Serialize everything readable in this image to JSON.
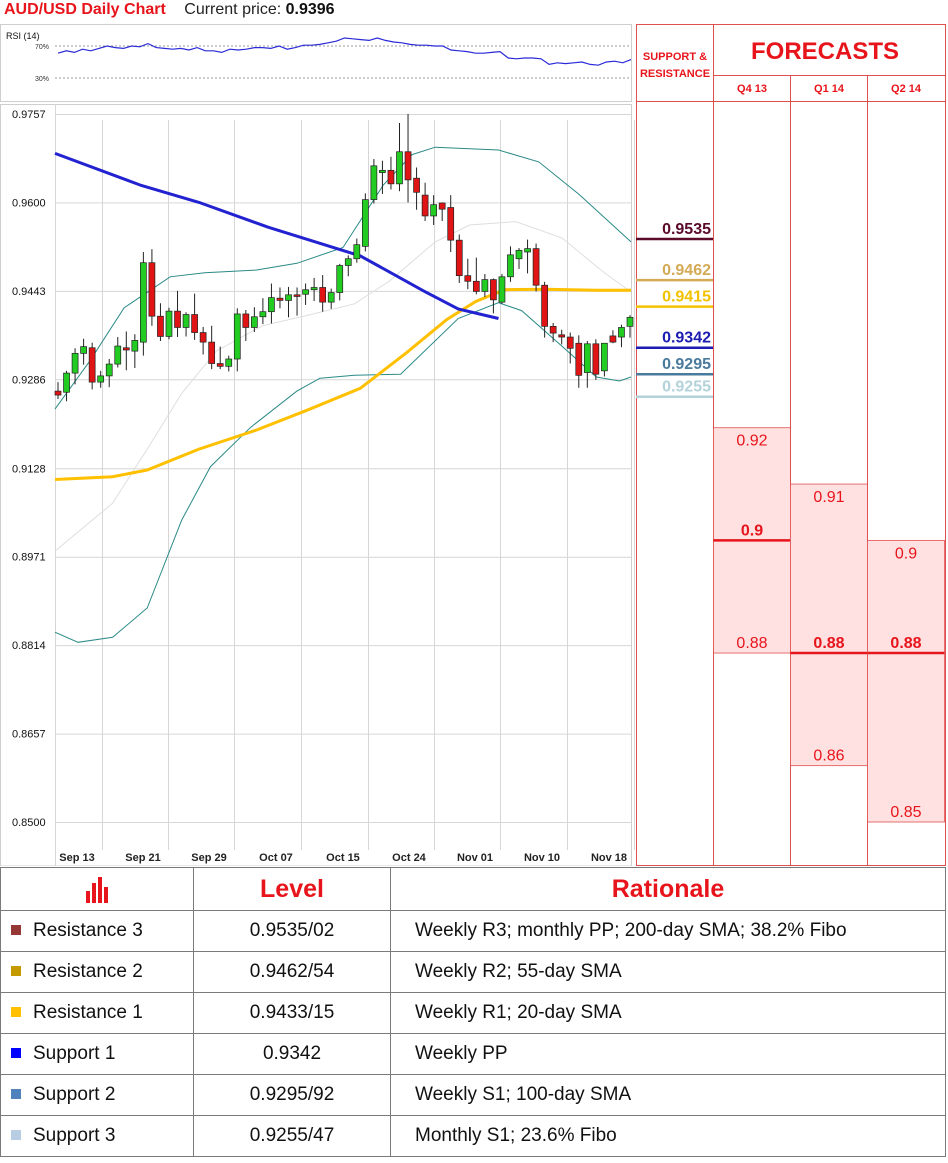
{
  "header": {
    "title": "AUD/USD Daily Chart",
    "price_label": "Current price:",
    "price": "0.9396"
  },
  "chart_data": {
    "type": "candlestick",
    "title": "AUD/USD Daily Chart",
    "y_ticks": [
      "0.9757",
      "0.9600",
      "0.9443",
      "0.9286",
      "0.9128",
      "0.8971",
      "0.8814",
      "0.8657",
      "0.8500"
    ],
    "ylim": [
      0.85,
      0.9757
    ],
    "x_labels": [
      "Sep 13",
      "Sep 21",
      "Sep 29",
      "Oct 07",
      "Oct 15",
      "Oct 24",
      "Nov 01",
      "Nov 10",
      "Nov 18"
    ],
    "rsi": {
      "label": "RSI (14)",
      "levels": [
        "70%",
        "30%"
      ],
      "values": [
        61,
        64,
        62,
        66,
        64,
        67,
        70,
        68,
        67,
        70,
        69,
        73,
        68,
        67,
        66,
        67,
        65,
        68,
        64,
        64,
        62,
        66,
        65,
        66,
        68,
        68,
        67,
        70,
        66,
        68,
        71,
        71,
        72,
        74,
        76,
        80,
        79,
        78,
        77,
        80,
        77,
        75,
        74,
        72,
        71,
        71,
        70,
        70,
        65,
        64,
        63,
        61,
        61,
        62,
        63,
        55,
        54,
        55,
        55,
        54,
        47,
        49,
        48,
        49,
        50,
        47,
        46,
        50,
        51,
        49,
        53
      ]
    },
    "candles": [
      [
        0.9265,
        0.9281,
        0.9251,
        0.9258
      ],
      [
        0.9263,
        0.9301,
        0.9247,
        0.9297
      ],
      [
        0.9297,
        0.9341,
        0.9277,
        0.9332
      ],
      [
        0.9332,
        0.9358,
        0.9312,
        0.9344
      ],
      [
        0.9342,
        0.9351,
        0.9268,
        0.9281
      ],
      [
        0.9281,
        0.9301,
        0.9271,
        0.9292
      ],
      [
        0.9292,
        0.9322,
        0.9272,
        0.9313
      ],
      [
        0.9313,
        0.9361,
        0.9307,
        0.9345
      ],
      [
        0.9342,
        0.9371,
        0.9302,
        0.9338
      ],
      [
        0.9336,
        0.9366,
        0.9306,
        0.9355
      ],
      [
        0.9352,
        0.9512,
        0.9328,
        0.9493
      ],
      [
        0.9493,
        0.9517,
        0.9381,
        0.9398
      ],
      [
        0.9398,
        0.9421,
        0.9354,
        0.9362
      ],
      [
        0.9362,
        0.9413,
        0.9357,
        0.9407
      ],
      [
        0.9407,
        0.9443,
        0.9361,
        0.9378
      ],
      [
        0.9378,
        0.9405,
        0.9362,
        0.9401
      ],
      [
        0.9401,
        0.9438,
        0.9356,
        0.9369
      ],
      [
        0.9369,
        0.9379,
        0.933,
        0.9352
      ],
      [
        0.9352,
        0.9381,
        0.9304,
        0.9314
      ],
      [
        0.9314,
        0.9344,
        0.9304,
        0.9309
      ],
      [
        0.9309,
        0.9328,
        0.93,
        0.9322
      ],
      [
        0.9322,
        0.9412,
        0.93,
        0.9402
      ],
      [
        0.9402,
        0.9409,
        0.9354,
        0.9378
      ],
      [
        0.9378,
        0.9414,
        0.937,
        0.9397
      ],
      [
        0.9397,
        0.943,
        0.9384,
        0.9406
      ],
      [
        0.9406,
        0.9456,
        0.9385,
        0.9431
      ],
      [
        0.943,
        0.9449,
        0.9412,
        0.9426
      ],
      [
        0.9426,
        0.945,
        0.9396,
        0.9436
      ],
      [
        0.9436,
        0.9449,
        0.9399,
        0.9433
      ],
      [
        0.9437,
        0.9456,
        0.9418,
        0.9445
      ],
      [
        0.9445,
        0.9466,
        0.9425,
        0.9449
      ],
      [
        0.9449,
        0.9471,
        0.9406,
        0.9423
      ],
      [
        0.9423,
        0.9447,
        0.9411,
        0.944
      ],
      [
        0.944,
        0.9491,
        0.9426,
        0.9488
      ],
      [
        0.9488,
        0.9506,
        0.9469,
        0.95
      ],
      [
        0.95,
        0.9536,
        0.9493,
        0.9525
      ],
      [
        0.9522,
        0.9616,
        0.9513,
        0.9605
      ],
      [
        0.9605,
        0.9677,
        0.9598,
        0.9665
      ],
      [
        0.9653,
        0.9674,
        0.9615,
        0.9657
      ],
      [
        0.9657,
        0.9681,
        0.9623,
        0.9633
      ],
      [
        0.9633,
        0.9741,
        0.962,
        0.969
      ],
      [
        0.969,
        0.9757,
        0.96,
        0.964
      ],
      [
        0.9643,
        0.9662,
        0.9587,
        0.9618
      ],
      [
        0.9613,
        0.9635,
        0.9567,
        0.9576
      ],
      [
        0.9576,
        0.9613,
        0.956,
        0.9596
      ],
      [
        0.9599,
        0.96,
        0.9567,
        0.9588
      ],
      [
        0.9591,
        0.9613,
        0.9512,
        0.9533
      ],
      [
        0.9533,
        0.9543,
        0.9457,
        0.947
      ],
      [
        0.947,
        0.95,
        0.9446,
        0.946
      ],
      [
        0.946,
        0.9502,
        0.9437,
        0.9442
      ],
      [
        0.9442,
        0.9473,
        0.9432,
        0.9463
      ],
      [
        0.9463,
        0.9465,
        0.9403,
        0.9427
      ],
      [
        0.9423,
        0.9473,
        0.942,
        0.9468
      ],
      [
        0.9468,
        0.9522,
        0.9459,
        0.9507
      ],
      [
        0.95,
        0.9519,
        0.9482,
        0.9515
      ],
      [
        0.9512,
        0.9534,
        0.9474,
        0.9518
      ],
      [
        0.9518,
        0.9527,
        0.9442,
        0.9453
      ],
      [
        0.9453,
        0.9459,
        0.936,
        0.938
      ],
      [
        0.938,
        0.9386,
        0.9352,
        0.9368
      ],
      [
        0.9365,
        0.9374,
        0.9348,
        0.9361
      ],
      [
        0.9361,
        0.9369,
        0.9314,
        0.9341
      ],
      [
        0.935,
        0.9364,
        0.9271,
        0.9293
      ],
      [
        0.9298,
        0.9354,
        0.9271,
        0.9349
      ],
      [
        0.9349,
        0.9357,
        0.9285,
        0.9295
      ],
      [
        0.9301,
        0.935,
        0.9291,
        0.935
      ],
      [
        0.9363,
        0.9373,
        0.935,
        0.9352
      ],
      [
        0.9361,
        0.9383,
        0.9343,
        0.9378
      ],
      [
        0.938,
        0.94,
        0.936,
        0.9396
      ]
    ],
    "sma_blue": [
      [
        0,
        0.9687
      ],
      [
        15,
        0.963
      ],
      [
        25,
        0.96
      ],
      [
        37,
        0.9556
      ],
      [
        53,
        0.9505
      ],
      [
        64,
        0.9443
      ],
      [
        70,
        0.9411
      ],
      [
        77,
        0.9394
      ]
    ],
    "sma_yellow": [
      [
        0,
        0.9108
      ],
      [
        10,
        0.9113
      ],
      [
        16,
        0.9125
      ],
      [
        25,
        0.9162
      ],
      [
        35,
        0.9196
      ],
      [
        44,
        0.9232
      ],
      [
        53,
        0.927
      ],
      [
        61,
        0.9333
      ],
      [
        68,
        0.9392
      ],
      [
        73,
        0.9424
      ],
      [
        78,
        0.9445
      ],
      [
        85,
        0.9446
      ],
      [
        94,
        0.9444
      ],
      [
        100,
        0.9444
      ]
    ],
    "bb_upper": [
      [
        0,
        0.9233
      ],
      [
        6,
        0.9318
      ],
      [
        12,
        0.9413
      ],
      [
        20,
        0.9468
      ],
      [
        26,
        0.9475
      ],
      [
        35,
        0.948
      ],
      [
        42,
        0.9492
      ],
      [
        50,
        0.952
      ],
      [
        57,
        0.9631
      ],
      [
        62,
        0.9685
      ],
      [
        66,
        0.9698
      ],
      [
        77,
        0.9693
      ],
      [
        84,
        0.9672
      ],
      [
        91,
        0.9614
      ],
      [
        100,
        0.953
      ]
    ],
    "bb_lower": [
      [
        0,
        0.8837
      ],
      [
        4,
        0.8819
      ],
      [
        10,
        0.8828
      ],
      [
        16,
        0.888
      ],
      [
        22,
        0.9036
      ],
      [
        27,
        0.9131
      ],
      [
        34,
        0.9201
      ],
      [
        42,
        0.9265
      ],
      [
        46,
        0.9288
      ],
      [
        52,
        0.9293
      ],
      [
        60,
        0.9295
      ],
      [
        70,
        0.9394
      ],
      [
        77,
        0.9422
      ],
      [
        81,
        0.9408
      ],
      [
        88,
        0.9345
      ],
      [
        94,
        0.929
      ],
      [
        98,
        0.9283
      ],
      [
        100,
        0.929
      ]
    ],
    "bb_mid": [
      [
        0,
        0.8981
      ],
      [
        10,
        0.9066
      ],
      [
        16,
        0.9162
      ],
      [
        22,
        0.9261
      ],
      [
        28,
        0.9336
      ],
      [
        36,
        0.9381
      ],
      [
        44,
        0.94
      ],
      [
        52,
        0.942
      ],
      [
        58,
        0.946
      ],
      [
        66,
        0.953
      ],
      [
        72,
        0.956
      ],
      [
        80,
        0.9566
      ],
      [
        88,
        0.9537
      ],
      [
        95,
        0.9478
      ],
      [
        100,
        0.9441
      ]
    ],
    "levels_panel": {
      "heading_line1": "SUPPORT &",
      "heading_line2": "RESISTANCE",
      "levels": [
        {
          "value": 0.9535,
          "label": "0.9535",
          "color": "#5b0a2a"
        },
        {
          "value": 0.9462,
          "label": "0.9462",
          "color": "#d4aa55"
        },
        {
          "value": 0.9415,
          "label": "0.9415",
          "color": "#f2c200"
        },
        {
          "value": 0.9342,
          "label": "0.9342",
          "color": "#1c1cb0"
        },
        {
          "value": 0.9295,
          "label": "0.9295",
          "color": "#4a7b9c"
        },
        {
          "value": 0.9255,
          "label": "0.9255",
          "color": "#b4d2da"
        }
      ]
    },
    "forecasts": {
      "title": "FORECASTS",
      "columns": [
        {
          "period": "Q4 13",
          "high": 0.92,
          "high_label": "0.92",
          "mid": 0.9,
          "mid_label": "0.9",
          "low": 0.88,
          "low_label": "0.88",
          "bold": "mid"
        },
        {
          "period": "Q1 14",
          "high": 0.91,
          "high_label": "0.91",
          "mid": 0.88,
          "mid_label": "0.88",
          "low": 0.86,
          "low_label": "0.86",
          "bold": "mid"
        },
        {
          "period": "Q2 14",
          "high": 0.9,
          "high_label": "0.9",
          "mid": 0.88,
          "mid_label": "0.88",
          "low": 0.85,
          "low_label": "0.85",
          "bold": "mid"
        }
      ]
    }
  },
  "table": {
    "headers": {
      "level": "Level",
      "rationale": "Rationale"
    },
    "rows": [
      {
        "name": "Resistance 3",
        "level": "0.9535/02",
        "rationale": "Weekly R3; monthly PP; 200-day SMA; 38.2% Fibo",
        "color": "#953735"
      },
      {
        "name": "Resistance 2",
        "level": "0.9462/54",
        "rationale": "Weekly R2; 55-day SMA",
        "color": "#c49a00"
      },
      {
        "name": "Resistance 1",
        "level": "0.9433/15",
        "rationale": "Weekly R1; 20-day SMA",
        "color": "#ffc000"
      },
      {
        "name": "Support 1",
        "level": "0.9342",
        "rationale": "Weekly PP",
        "color": "#0000ff"
      },
      {
        "name": "Support 2",
        "level": "0.9295/92",
        "rationale": "Weekly S1; 100-day SMA",
        "color": "#4f81bd"
      },
      {
        "name": "Support 3",
        "level": "0.9255/47",
        "rationale": "Monthly S1; 23.6% Fibo",
        "color": "#b8cce4"
      }
    ]
  }
}
